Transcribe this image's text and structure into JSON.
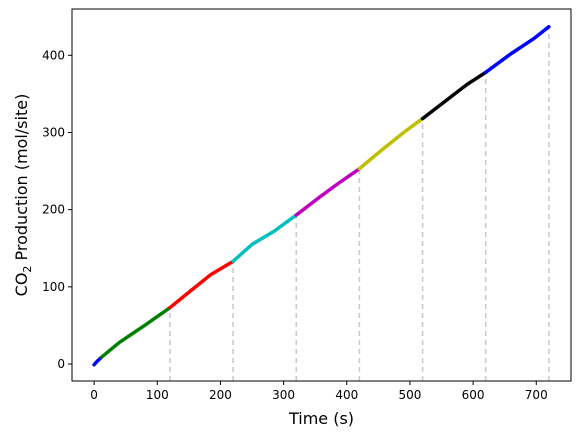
{
  "chart_data": {
    "type": "line",
    "xlabel": "Time (s)",
    "ylabel_main": "CO",
    "ylabel_sub": "2",
    "ylabel_rest": " Production (mol/site)",
    "xlim": [
      -35,
      755
    ],
    "ylim": [
      -22,
      460
    ],
    "xticks": [
      0,
      100,
      200,
      300,
      400,
      500,
      600,
      700
    ],
    "yticks": [
      0,
      100,
      200,
      300,
      400
    ],
    "grid": false,
    "series": [
      {
        "color": "#0000ff",
        "x": [
          0,
          3,
          8,
          12
        ],
        "y": [
          -1,
          2,
          6,
          9
        ]
      },
      {
        "color": "#008000",
        "x": [
          12,
          40,
          80,
          120
        ],
        "y": [
          9,
          28,
          50,
          73
        ]
      },
      {
        "color": "#ff0000",
        "x": [
          120,
          150,
          185,
          220
        ],
        "y": [
          73,
          93,
          116,
          133
        ]
      },
      {
        "color": "#00bfbf",
        "x": [
          220,
          250,
          285,
          320
        ],
        "y": [
          133,
          155,
          172,
          193
        ]
      },
      {
        "color": "#bf00bf",
        "x": [
          320,
          355,
          390,
          420
        ],
        "y": [
          193,
          215,
          236,
          253
        ]
      },
      {
        "color": "#bfbf00",
        "x": [
          420,
          455,
          490,
          520
        ],
        "y": [
          253,
          277,
          300,
          318
        ]
      },
      {
        "color": "#000000",
        "x": [
          520,
          555,
          590,
          620
        ],
        "y": [
          318,
          340,
          362,
          378
        ]
      },
      {
        "color": "#0000ff",
        "x": [
          620,
          660,
          695,
          720
        ],
        "y": [
          378,
          402,
          421,
          437
        ]
      }
    ],
    "vlines": [
      {
        "x": 120,
        "y_top": 73
      },
      {
        "x": 220,
        "y_top": 133
      },
      {
        "x": 320,
        "y_top": 193
      },
      {
        "x": 420,
        "y_top": 253
      },
      {
        "x": 520,
        "y_top": 318
      },
      {
        "x": 620,
        "y_top": 378
      },
      {
        "x": 720,
        "y_top": 437
      }
    ],
    "vline_color": "#c8c8c8"
  }
}
